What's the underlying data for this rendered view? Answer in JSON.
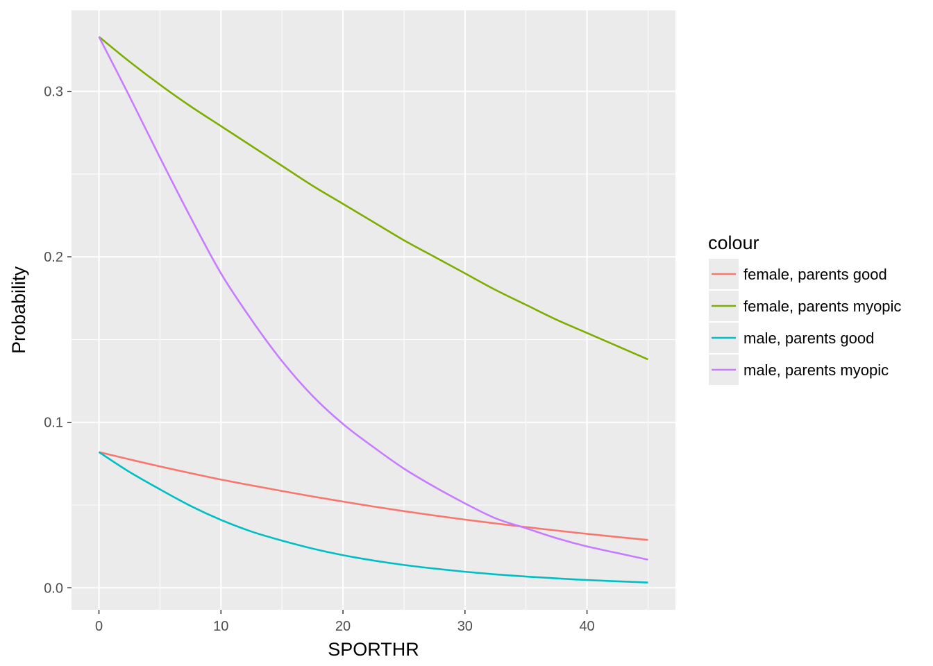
{
  "chart_data": {
    "type": "line",
    "xlabel": "SPORTHR",
    "ylabel": "Probability",
    "xlim": [
      -2.25,
      47.25
    ],
    "ylim": [
      -0.0133,
      0.3489
    ],
    "x_ticks": [
      0,
      10,
      20,
      30,
      40
    ],
    "x_tick_labels": [
      "0",
      "10",
      "20",
      "30",
      "40"
    ],
    "y_ticks": [
      0.0,
      0.1,
      0.2,
      0.3
    ],
    "y_tick_labels": [
      "0.0",
      "0.1",
      "0.2",
      "0.3"
    ],
    "grid": true,
    "legend": {
      "title": "colour",
      "position": "right"
    },
    "x": [
      0,
      2.5,
      5,
      7.5,
      10,
      12.5,
      15,
      17.5,
      20,
      22.5,
      25,
      27.5,
      30,
      32.5,
      35,
      37.5,
      40,
      42.5,
      45
    ],
    "series": [
      {
        "name": "female, parents good",
        "color": "#F8766D",
        "values": [
          0.082,
          0.0776,
          0.0733,
          0.0693,
          0.0654,
          0.0619,
          0.0585,
          0.0552,
          0.0521,
          0.0491,
          0.0463,
          0.0437,
          0.0412,
          0.0389,
          0.0367,
          0.0346,
          0.0326,
          0.0307,
          0.0289
        ]
      },
      {
        "name": "female, parents myopic",
        "color": "#7CAE00",
        "values": [
          0.333,
          0.318,
          0.304,
          0.291,
          0.279,
          0.267,
          0.255,
          0.243,
          0.232,
          0.221,
          0.21,
          0.2,
          0.19,
          0.18,
          0.171,
          0.162,
          0.154,
          0.146,
          0.138
        ]
      },
      {
        "name": "male, parents good",
        "color": "#00BFC4",
        "values": [
          0.082,
          0.07,
          0.0595,
          0.0495,
          0.041,
          0.034,
          0.0285,
          0.0237,
          0.0197,
          0.0165,
          0.0138,
          0.0116,
          0.0097,
          0.0081,
          0.0068,
          0.0057,
          0.0047,
          0.0039,
          0.0032
        ]
      },
      {
        "name": "male, parents myopic",
        "color": "#C77CFF",
        "values": [
          0.333,
          0.297,
          0.26,
          0.224,
          0.19,
          0.162,
          0.137,
          0.116,
          0.099,
          0.085,
          0.072,
          0.061,
          0.051,
          0.042,
          0.036,
          0.03,
          0.025,
          0.021,
          0.017
        ]
      }
    ]
  }
}
